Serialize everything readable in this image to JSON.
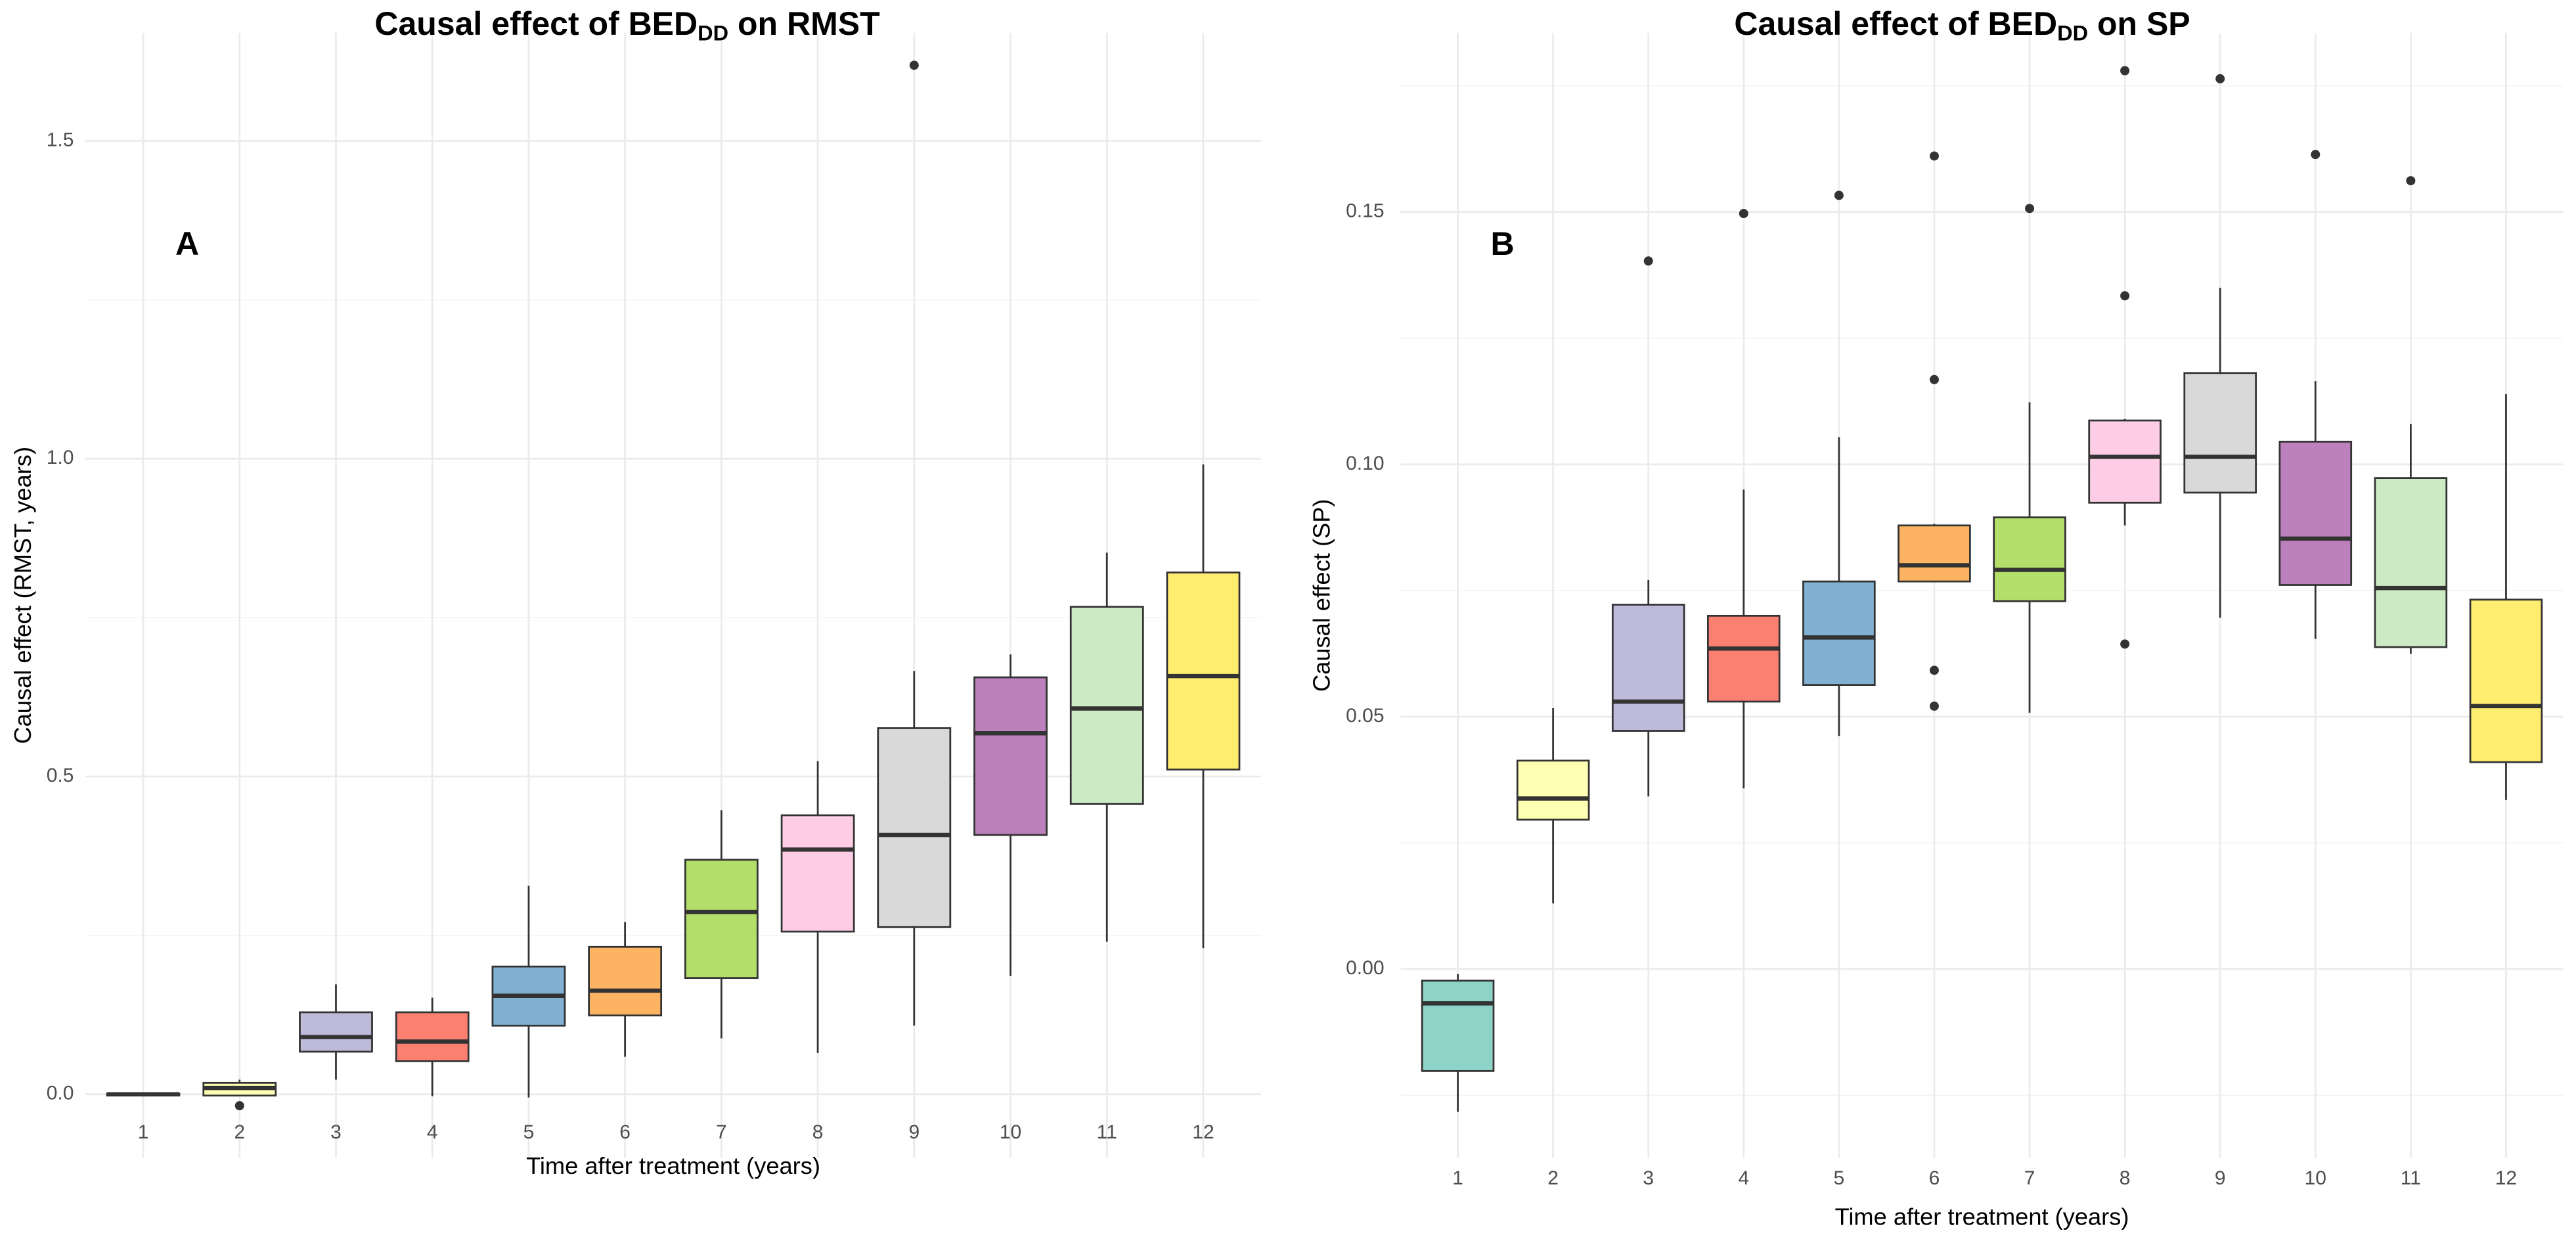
{
  "chart_data": [
    {
      "type": "box",
      "title_parts": [
        "Causal effect of BED",
        "DD",
        " on RMST"
      ],
      "annotation": "A",
      "xlabel": "Time after treatment (years)",
      "ylabel": "Causal effect (RMST, years)",
      "categories": [
        "1",
        "2",
        "3",
        "4",
        "5",
        "6",
        "7",
        "8",
        "9",
        "10",
        "11",
        "12"
      ],
      "colors": [
        "#8dd3c7",
        "#ffffb3",
        "#bebada",
        "#fb8072",
        "#80b1d3",
        "#fdb462",
        "#b3de69",
        "#fccde5",
        "#d9d9d9",
        "#bc80bd",
        "#ccebc5",
        "#ffed6f"
      ],
      "ylim": [
        -0.1,
        1.67
      ],
      "yticks": [
        {
          "value": 0,
          "label": "0.0"
        },
        0.5,
        {
          "value": 1,
          "label": "1.0"
        },
        1.5
      ],
      "y_minor_grid": [
        0.25,
        0.75,
        1.25
      ],
      "grid": true,
      "boxes": [
        {
          "low": -0.003,
          "q1": -0.002,
          "median": 0,
          "q3": 0.001,
          "high": 0.002
        },
        {
          "low": -0.002,
          "q1": -0.002,
          "median": 0.01,
          "q3": 0.018,
          "high": 0.023,
          "outliers": [
            -0.018
          ]
        },
        {
          "low": 0.023,
          "q1": 0.067,
          "median": 0.09,
          "q3": 0.129,
          "high": 0.173
        },
        {
          "low": -0.003,
          "q1": 0.052,
          "median": 0.083,
          "q3": 0.129,
          "high": 0.152
        },
        {
          "low": -0.005,
          "q1": 0.108,
          "median": 0.155,
          "q3": 0.201,
          "high": 0.328
        },
        {
          "low": 0.059,
          "q1": 0.124,
          "median": 0.163,
          "q3": 0.232,
          "high": 0.271
        },
        {
          "low": 0.088,
          "q1": 0.183,
          "median": 0.287,
          "q3": 0.369,
          "high": 0.447
        },
        {
          "low": 0.065,
          "q1": 0.256,
          "median": 0.385,
          "q3": 0.439,
          "high": 0.524
        },
        {
          "low": 0.108,
          "q1": 0.263,
          "median": 0.408,
          "q3": 0.576,
          "high": 0.666,
          "outliers": [
            1.619
          ]
        },
        {
          "low": 0.186,
          "q1": 0.408,
          "median": 0.568,
          "q3": 0.656,
          "high": 0.692
        },
        {
          "low": 0.24,
          "q1": 0.457,
          "median": 0.607,
          "q3": 0.767,
          "high": 0.852
        },
        {
          "low": 0.23,
          "q1": 0.511,
          "median": 0.658,
          "q3": 0.821,
          "high": 0.991
        }
      ]
    },
    {
      "type": "box",
      "title_parts": [
        "Causal effect of BED",
        "DD",
        " on SP"
      ],
      "annotation": "B",
      "xlabel": "Time after treatment (years)",
      "ylabel": "Causal effect (SP)",
      "categories": [
        "1",
        "2",
        "3",
        "4",
        "5",
        "6",
        "7",
        "8",
        "9",
        "10",
        "11",
        "12"
      ],
      "colors": [
        "#8dd3c7",
        "#ffffb3",
        "#bebada",
        "#fb8072",
        "#80b1d3",
        "#fdb462",
        "#b3de69",
        "#fccde5",
        "#d9d9d9",
        "#bc80bd",
        "#ccebc5",
        "#ffed6f"
      ],
      "ylim": [
        -0.0374,
        0.1855
      ],
      "yticks": [
        {
          "value": 0,
          "label": "0.00"
        },
        0.05,
        {
          "value": 0.1,
          "label": "0.10"
        },
        0.15
      ],
      "y_minor_grid": [
        -0.025,
        0.025,
        0.075,
        0.125,
        0.175
      ],
      "grid": true,
      "boxes": [
        {
          "low": -0.0283,
          "q1": -0.0202,
          "median": -0.0068,
          "q3": -0.0023,
          "high": -0.001
        },
        {
          "low": 0.013,
          "q1": 0.0296,
          "median": 0.0338,
          "q3": 0.0413,
          "high": 0.0517
        },
        {
          "low": 0.0342,
          "q1": 0.0472,
          "median": 0.053,
          "q3": 0.0722,
          "high": 0.0771,
          "outliers": [
            0.1403
          ]
        },
        {
          "low": 0.0358,
          "q1": 0.053,
          "median": 0.0635,
          "q3": 0.07,
          "high": 0.095,
          "outliers": [
            0.1497
          ]
        },
        {
          "low": 0.0462,
          "q1": 0.0563,
          "median": 0.0657,
          "q3": 0.0768,
          "high": 0.1054,
          "outliers": [
            0.1533
          ]
        },
        {
          "low": 0.0768,
          "q1": 0.0768,
          "median": 0.08,
          "q3": 0.0879,
          "high": 0.0882,
          "outliers": [
            0.1611,
            0.1168,
            0.0592,
            0.0521
          ]
        },
        {
          "low": 0.0508,
          "q1": 0.0729,
          "median": 0.0791,
          "q3": 0.0895,
          "high": 0.1123,
          "outliers": [
            0.1507
          ]
        },
        {
          "low": 0.0879,
          "q1": 0.0924,
          "median": 0.1015,
          "q3": 0.1087,
          "high": 0.109,
          "outliers": [
            0.178,
            0.1334,
            0.0644
          ]
        },
        {
          "low": 0.0696,
          "q1": 0.0944,
          "median": 0.1015,
          "q3": 0.1181,
          "high": 0.135,
          "outliers": [
            0.1764
          ]
        },
        {
          "low": 0.0654,
          "q1": 0.0761,
          "median": 0.0853,
          "q3": 0.1045,
          "high": 0.1165,
          "outliers": [
            0.1614
          ]
        },
        {
          "low": 0.0625,
          "q1": 0.0638,
          "median": 0.0755,
          "q3": 0.0973,
          "high": 0.108,
          "outliers": [
            0.1562
          ]
        },
        {
          "low": 0.0335,
          "q1": 0.041,
          "median": 0.0521,
          "q3": 0.0732,
          "high": 0.1139
        }
      ]
    }
  ]
}
